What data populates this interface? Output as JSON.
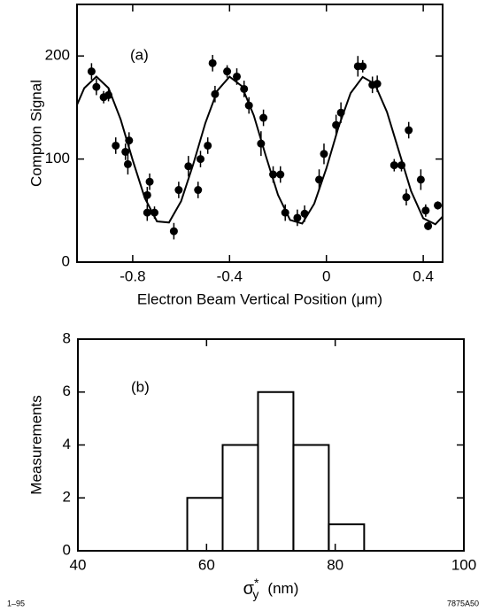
{
  "chart_data": [
    {
      "type": "scatter",
      "panel_label": "(a)",
      "y_label": "Compton Signal",
      "x_label": "Electron Beam Vertical Position  (μm)",
      "color": "#000000",
      "xlim": [
        -1.03,
        0.48
      ],
      "xticks": [
        -0.8,
        -0.4,
        0,
        0.4
      ],
      "ylim": [
        0,
        250
      ],
      "yticks": [
        0,
        100,
        200
      ],
      "points": {
        "x": [
          -0.97,
          -0.95,
          -0.92,
          -0.9,
          -0.87,
          -0.83,
          -0.82,
          -0.815,
          -0.74,
          -0.74,
          -0.73,
          -0.71,
          -0.63,
          -0.61,
          -0.57,
          -0.53,
          -0.52,
          -0.49,
          -0.47,
          -0.46,
          -0.41,
          -0.37,
          -0.34,
          -0.32,
          -0.27,
          -0.26,
          -0.22,
          -0.19,
          -0.17,
          -0.12,
          -0.09,
          -0.03,
          -0.01,
          0.04,
          0.06,
          0.13,
          0.15,
          0.19,
          0.21,
          0.28,
          0.31,
          0.33,
          0.34,
          0.39,
          0.41,
          0.42,
          0.46
        ],
        "values": [
          185,
          170,
          160,
          162,
          113,
          107,
          95,
          118,
          48,
          65,
          78,
          48,
          30,
          70,
          93,
          70,
          100,
          113,
          193,
          163,
          185,
          180,
          168,
          152,
          115,
          140,
          85,
          85,
          48,
          43,
          47,
          80,
          105,
          133,
          145,
          190,
          190,
          172,
          173,
          94,
          94,
          63,
          128,
          80,
          50,
          35,
          55
        ],
        "errors": [
          8,
          8,
          6,
          6,
          8,
          8,
          10,
          8,
          8,
          8,
          8,
          6,
          8,
          8,
          10,
          8,
          8,
          8,
          8,
          8,
          6,
          8,
          8,
          8,
          12,
          8,
          8,
          8,
          8,
          8,
          8,
          10,
          10,
          10,
          10,
          10,
          6,
          8,
          8,
          6,
          6,
          8,
          8,
          10,
          6,
          4,
          4
        ]
      },
      "fit": {
        "x": [
          -1.03,
          -1.0,
          -0.95,
          -0.9,
          -0.85,
          -0.8,
          -0.75,
          -0.7,
          -0.65,
          -0.6,
          -0.55,
          -0.5,
          -0.45,
          -0.4,
          -0.35,
          -0.3,
          -0.25,
          -0.2,
          -0.15,
          -0.1,
          -0.05,
          0.0,
          0.05,
          0.1,
          0.15,
          0.2,
          0.25,
          0.3,
          0.35,
          0.4,
          0.45,
          0.48
        ],
        "values": [
          152.6,
          168.8,
          180,
          168.8,
          138.7,
          99,
          62.1,
          39.5,
          38.4,
          59.1,
          94.9,
          135,
          166.4,
          179.9,
          170.9,
          142.3,
          103,
          65.3,
          40.9,
          37.4,
          56.7,
          91,
          131.1,
          164,
          179.6,
          172.8,
          145.8,
          107.1,
          68.8,
          42.5,
          36.7,
          44.2
        ]
      }
    },
    {
      "type": "histogram",
      "panel_label": "(b)",
      "y_label": "Measurements",
      "x_label": {
        "symbol": "σ",
        "subscript": "y",
        "superscript": "*",
        "unit": "(nm)"
      },
      "color": "#000000",
      "bins": [
        57,
        62.5,
        68,
        73.5,
        79,
        84.5
      ],
      "counts": [
        2,
        4,
        6,
        4,
        1
      ],
      "xlim": [
        40,
        100
      ],
      "xticks": [
        40,
        60,
        80,
        100
      ],
      "ylim": [
        0,
        8
      ],
      "yticks": [
        0,
        2,
        4,
        6,
        8
      ]
    }
  ],
  "footer": {
    "left": "1–95",
    "right": "7875A50"
  }
}
